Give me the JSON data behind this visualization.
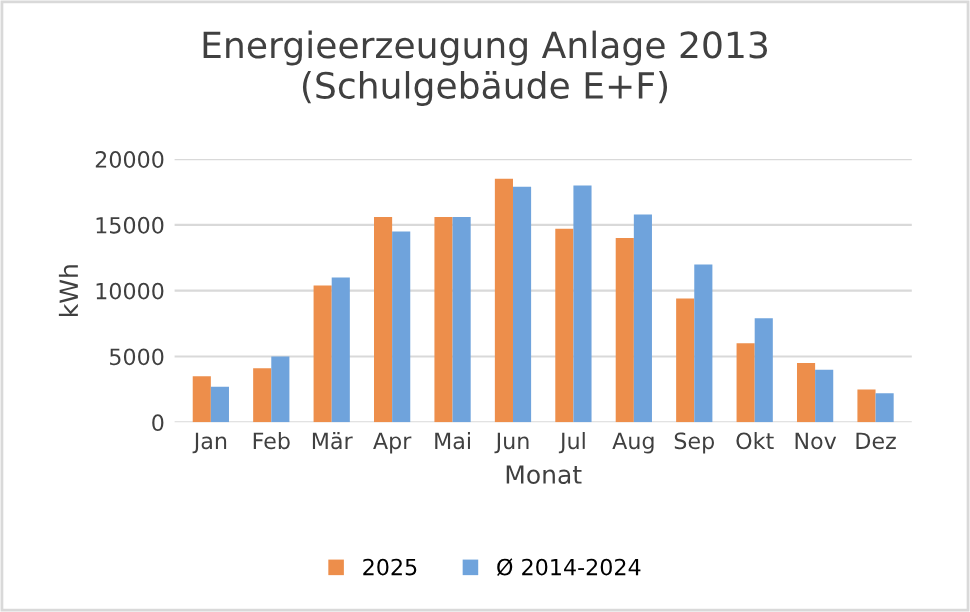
{
  "chart_data": {
    "type": "bar",
    "title": "Energieerzeugung Anlage 2013\n(Schulgebäude E+F)",
    "xlabel": "Monat",
    "ylabel": "kWh",
    "categories": [
      "Jan",
      "Feb",
      "Mär",
      "Apr",
      "Mai",
      "Jun",
      "Jul",
      "Aug",
      "Sep",
      "Okt",
      "Nov",
      "Dez"
    ],
    "series": [
      {
        "name": "2025",
        "color": "#ed8e4b",
        "values": [
          3500,
          4100,
          10400,
          15600,
          15600,
          18500,
          14700,
          14000,
          9400,
          6000,
          4500,
          2500
        ]
      },
      {
        "name": "Ø 2014-2024",
        "color": "#6fa3dc",
        "values": [
          2700,
          5000,
          11000,
          14500,
          15600,
          17900,
          18000,
          15800,
          12000,
          7900,
          4000,
          2200
        ]
      }
    ],
    "ylim": [
      0,
      20000
    ],
    "yticks": [
      0,
      5000,
      10000,
      15000,
      20000
    ],
    "grid": "y",
    "legend": "bottom"
  }
}
